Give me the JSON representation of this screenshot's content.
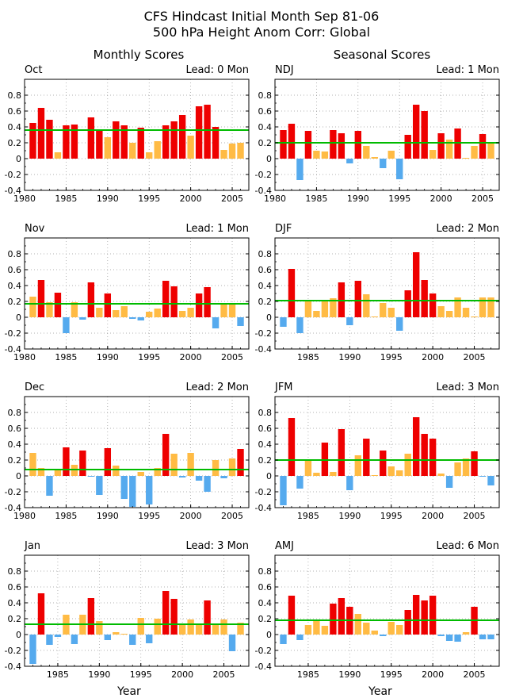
{
  "title_lines": [
    "CFS Hindcast Initial Month Sep 81-06",
    "500 hPa Height Anom Corr: Global"
  ],
  "column_headers": {
    "left": "Monthly Scores",
    "right": "Seasonal Scores"
  },
  "xlabel": "Year",
  "colors": {
    "high": "#ee0000",
    "mid": "#ffbb44",
    "low": "#55aaee",
    "reference_line": "#00bb00",
    "grid": "#999999"
  },
  "chart_data": [
    {
      "type": "bar",
      "panel": "Oct",
      "lead": "Lead: 0 Mon",
      "column": "left",
      "xlim": [
        1980,
        2007
      ],
      "ylim": [
        -0.4,
        1.0
      ],
      "x_ticks": [
        "1980",
        "1985",
        "1990",
        "1995",
        "2000",
        "2005"
      ],
      "y_ticks": [
        "-0.4",
        "-0.2",
        "0",
        "0.2",
        "0.4",
        "0.6",
        "0.8"
      ],
      "mean": 0.36,
      "x": [
        1981,
        1982,
        1983,
        1984,
        1985,
        1986,
        1988,
        1989,
        1990,
        1991,
        1992,
        1993,
        1994,
        1995,
        1996,
        1997,
        1998,
        1999,
        2000,
        2001,
        2002,
        2003,
        2004,
        2005,
        2006
      ],
      "values": [
        0.45,
        0.64,
        0.49,
        0.08,
        0.42,
        0.43,
        0.52,
        0.36,
        0.27,
        0.47,
        0.42,
        0.2,
        0.39,
        0.08,
        0.22,
        0.42,
        0.47,
        0.55,
        0.29,
        0.66,
        0.68,
        0.4,
        0.11,
        0.19,
        0.2
      ]
    },
    {
      "type": "bar",
      "panel": "NDJ",
      "lead": "Lead: 1 Mon",
      "column": "right",
      "xlim": [
        1980,
        2007
      ],
      "ylim": [
        -0.4,
        1.0
      ],
      "x_ticks": [
        "1980",
        "1985",
        "1990",
        "1995",
        "2000",
        "2005"
      ],
      "y_ticks": [
        "-0.4",
        "-0.2",
        "0",
        "0.2",
        "0.4",
        "0.6",
        "0.8"
      ],
      "mean": 0.2,
      "x": [
        1981,
        1982,
        1983,
        1984,
        1985,
        1986,
        1987,
        1988,
        1989,
        1990,
        1991,
        1992,
        1993,
        1994,
        1995,
        1996,
        1997,
        1998,
        1999,
        2000,
        2001,
        2002,
        2003,
        2004,
        2005,
        2006
      ],
      "values": [
        0.36,
        0.44,
        -0.27,
        0.35,
        0.1,
        0.09,
        0.36,
        0.32,
        -0.06,
        0.35,
        0.16,
        0.02,
        -0.12,
        0.1,
        -0.26,
        0.3,
        0.68,
        0.6,
        0.11,
        0.32,
        0.24,
        0.38,
        0.01,
        0.16,
        0.31,
        0.2
      ]
    },
    {
      "type": "bar",
      "panel": "Nov",
      "lead": "Lead: 1 Mon",
      "column": "left",
      "xlim": [
        1980,
        2007
      ],
      "ylim": [
        -0.4,
        1.0
      ],
      "x_ticks": [
        "1980",
        "1985",
        "1990",
        "1995",
        "2000",
        "2005"
      ],
      "y_ticks": [
        "-0.4",
        "-0.2",
        "0",
        "0.2",
        "0.4",
        "0.6",
        "0.8"
      ],
      "mean": 0.17,
      "x": [
        1981,
        1982,
        1983,
        1984,
        1985,
        1986,
        1987,
        1988,
        1989,
        1990,
        1991,
        1992,
        1993,
        1994,
        1995,
        1996,
        1997,
        1998,
        1999,
        2000,
        2001,
        2002,
        2003,
        2004,
        2005,
        2006
      ],
      "values": [
        0.26,
        0.47,
        0.19,
        0.31,
        -0.2,
        0.19,
        -0.03,
        0.44,
        0.12,
        0.3,
        0.09,
        0.14,
        -0.02,
        -0.04,
        0.07,
        0.11,
        0.46,
        0.39,
        0.08,
        0.12,
        0.3,
        0.38,
        -0.14,
        0.17,
        0.17,
        -0.11
      ]
    },
    {
      "type": "bar",
      "panel": "DJF",
      "lead": "Lead: 2 Mon",
      "column": "right",
      "xlim": [
        1981,
        2008
      ],
      "ylim": [
        -0.4,
        1.0
      ],
      "x_ticks": [
        "1985",
        "1990",
        "1995",
        "2000",
        "2005"
      ],
      "y_ticks": [
        "-0.4",
        "-0.2",
        "0",
        "0.2",
        "0.4",
        "0.6",
        "0.8"
      ],
      "mean": 0.21,
      "x": [
        1982,
        1983,
        1984,
        1985,
        1986,
        1987,
        1988,
        1989,
        1990,
        1991,
        1992,
        1993,
        1994,
        1995,
        1996,
        1997,
        1998,
        1999,
        2000,
        2001,
        2002,
        2003,
        2004,
        2005,
        2006,
        2007
      ],
      "values": [
        -0.12,
        0.61,
        -0.2,
        0.21,
        0.08,
        0.21,
        0.24,
        0.44,
        -0.1,
        0.46,
        0.29,
        0.01,
        0.18,
        0.12,
        -0.17,
        0.34,
        0.82,
        0.47,
        0.3,
        0.14,
        0.08,
        0.25,
        0.12,
        0.01,
        0.25,
        0.25
      ]
    },
    {
      "type": "bar",
      "panel": "Dec",
      "lead": "Lead: 2 Mon",
      "column": "left",
      "xlim": [
        1980,
        2007
      ],
      "ylim": [
        -0.4,
        1.0
      ],
      "x_ticks": [
        "1980",
        "1985",
        "1990",
        "1995",
        "2000",
        "2005"
      ],
      "y_ticks": [
        "-0.4",
        "-0.2",
        "0",
        "0.2",
        "0.4",
        "0.6",
        "0.8"
      ],
      "mean": 0.08,
      "x": [
        1981,
        1982,
        1983,
        1984,
        1985,
        1986,
        1987,
        1988,
        1989,
        1990,
        1991,
        1992,
        1993,
        1994,
        1995,
        1996,
        1997,
        1998,
        1999,
        2000,
        2001,
        2002,
        2003,
        2004,
        2005,
        2006
      ],
      "values": [
        0.29,
        0.1,
        -0.25,
        0.09,
        0.36,
        0.14,
        0.32,
        -0.01,
        -0.24,
        0.35,
        0.13,
        -0.29,
        -0.39,
        0.05,
        -0.36,
        0.1,
        0.53,
        0.28,
        -0.02,
        0.29,
        -0.06,
        -0.2,
        0.2,
        -0.03,
        0.22,
        0.34
      ]
    },
    {
      "type": "bar",
      "panel": "JFM",
      "lead": "Lead: 3 Mon",
      "column": "right",
      "xlim": [
        1981,
        2008
      ],
      "ylim": [
        -0.4,
        1.0
      ],
      "x_ticks": [
        "1985",
        "1990",
        "1995",
        "2000",
        "2005"
      ],
      "y_ticks": [
        "-0.4",
        "-0.2",
        "0",
        "0.2",
        "0.4",
        "0.6",
        "0.8"
      ],
      "mean": 0.2,
      "x": [
        1982,
        1983,
        1984,
        1985,
        1986,
        1987,
        1988,
        1989,
        1990,
        1991,
        1992,
        1993,
        1994,
        1995,
        1996,
        1997,
        1998,
        1999,
        2000,
        2001,
        2002,
        2003,
        2004,
        2005,
        2006,
        2007
      ],
      "values": [
        -0.37,
        0.73,
        -0.16,
        0.19,
        0.04,
        0.42,
        0.05,
        0.59,
        -0.18,
        0.26,
        0.47,
        0.01,
        0.32,
        0.12,
        0.07,
        0.28,
        0.74,
        0.53,
        0.47,
        0.03,
        -0.15,
        0.17,
        0.22,
        0.31,
        -0.01,
        -0.12
      ]
    },
    {
      "type": "bar",
      "panel": "Jan",
      "lead": "Lead: 3 Mon",
      "column": "left",
      "xlim": [
        1981,
        2008
      ],
      "ylim": [
        -0.4,
        1.0
      ],
      "x_ticks": [
        "1985",
        "1990",
        "1995",
        "2000",
        "2005"
      ],
      "y_ticks": [
        "-0.4",
        "-0.2",
        "0",
        "0.2",
        "0.4",
        "0.6",
        "0.8"
      ],
      "mean": 0.13,
      "x": [
        1982,
        1983,
        1984,
        1985,
        1986,
        1987,
        1988,
        1989,
        1990,
        1991,
        1992,
        1993,
        1994,
        1995,
        1996,
        1997,
        1998,
        1999,
        2000,
        2001,
        2002,
        2003,
        2004,
        2005,
        2006,
        2007
      ],
      "values": [
        -0.37,
        0.52,
        -0.13,
        -0.03,
        0.25,
        -0.12,
        0.25,
        0.46,
        0.17,
        -0.07,
        0.03,
        0.01,
        -0.13,
        0.21,
        -0.11,
        0.2,
        0.55,
        0.45,
        0.14,
        0.19,
        0.13,
        0.43,
        0.14,
        0.19,
        -0.21,
        0.15
      ]
    },
    {
      "type": "bar",
      "panel": "AMJ",
      "lead": "Lead: 6 Mon",
      "column": "right",
      "xlim": [
        1981,
        2008
      ],
      "ylim": [
        -0.4,
        1.0
      ],
      "x_ticks": [
        "1985",
        "1990",
        "1995",
        "2000",
        "2005"
      ],
      "y_ticks": [
        "-0.4",
        "-0.2",
        "0",
        "0.2",
        "0.4",
        "0.6",
        "0.8"
      ],
      "mean": 0.18,
      "x": [
        1982,
        1983,
        1984,
        1985,
        1986,
        1987,
        1988,
        1989,
        1990,
        1991,
        1992,
        1993,
        1994,
        1995,
        1996,
        1997,
        1998,
        1999,
        2000,
        2001,
        2002,
        2003,
        2004,
        2005,
        2006,
        2007
      ],
      "values": [
        -0.12,
        0.49,
        -0.07,
        0.12,
        0.17,
        0.11,
        0.39,
        0.46,
        0.35,
        0.26,
        0.15,
        0.05,
        -0.02,
        0.16,
        0.12,
        0.31,
        0.5,
        0.43,
        0.49,
        -0.02,
        -0.08,
        -0.09,
        0.03,
        0.35,
        -0.06,
        -0.06
      ]
    }
  ]
}
